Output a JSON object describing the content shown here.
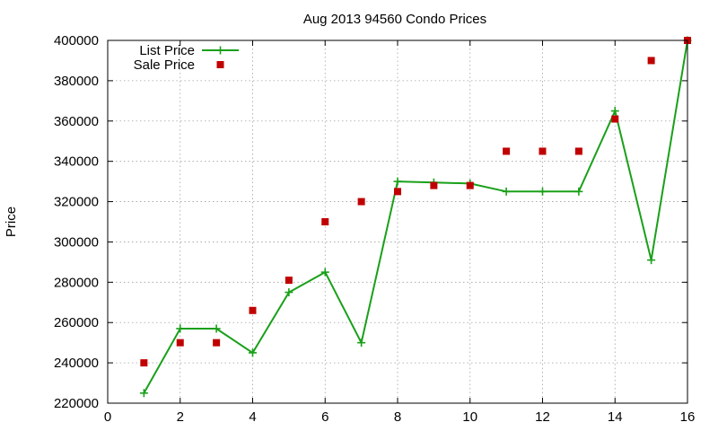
{
  "chart_data": {
    "type": "scatter",
    "title": "Aug 2013 94560 Condo Prices",
    "xlabel": "",
    "ylabel": "Price",
    "xlim": [
      0,
      16
    ],
    "ylim": [
      220000,
      400000
    ],
    "xticks": [
      0,
      2,
      4,
      6,
      8,
      10,
      12,
      14,
      16
    ],
    "yticks": [
      220000,
      240000,
      260000,
      280000,
      300000,
      320000,
      340000,
      360000,
      380000,
      400000
    ],
    "grid": true,
    "legend_position": "top-left",
    "series": [
      {
        "name": "List Price",
        "style": "line-with-plus-markers",
        "color": "#19a019",
        "x": [
          1,
          2,
          3,
          4,
          5,
          6,
          7,
          8,
          9,
          10,
          11,
          12,
          13,
          14,
          15,
          16
        ],
        "y": [
          225000,
          257000,
          257000,
          245000,
          275000,
          285000,
          250000,
          330000,
          329500,
          329000,
          325000,
          325000,
          325000,
          365000,
          291000,
          400000
        ]
      },
      {
        "name": "Sale Price",
        "style": "square-markers",
        "color": "#c00000",
        "x": [
          1,
          2,
          3,
          4,
          5,
          6,
          7,
          8,
          9,
          10,
          11,
          12,
          13,
          14,
          15,
          16
        ],
        "y": [
          240000,
          250000,
          250000,
          266000,
          281000,
          310000,
          320000,
          325000,
          328000,
          328000,
          345000,
          345000,
          345000,
          361000,
          390000,
          400000
        ]
      }
    ]
  }
}
